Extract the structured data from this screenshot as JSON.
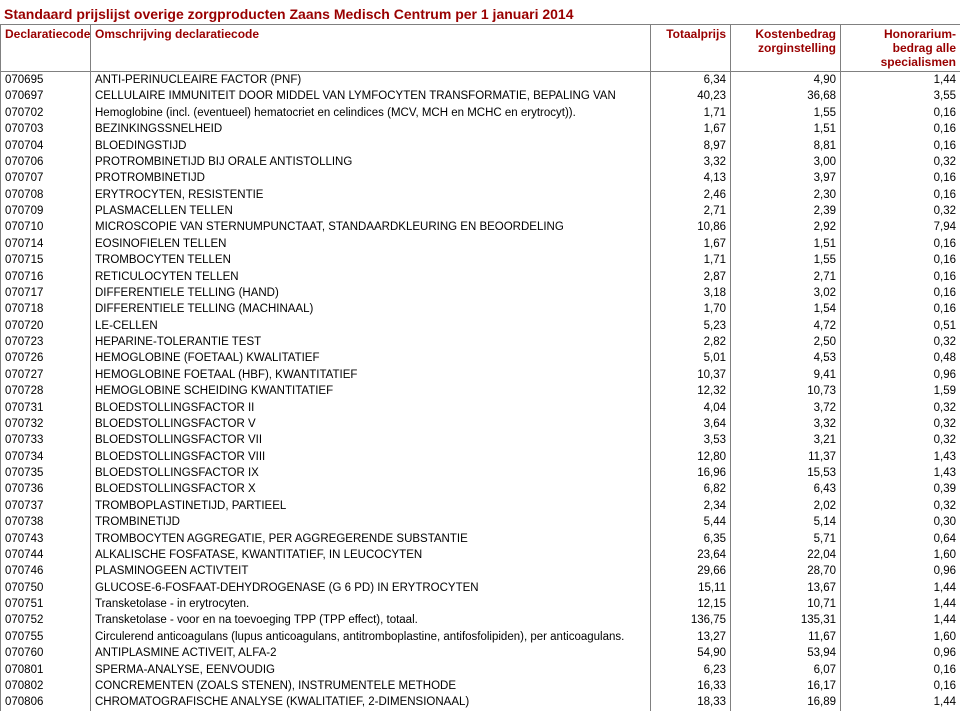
{
  "title": "Standaard prijslijst overige zorgproducten Zaans Medisch Centrum per 1 januari 2014",
  "colors": {
    "header_text": "#990000",
    "border": "#808080",
    "text": "#000000",
    "background": "#ffffff"
  },
  "table": {
    "headers": {
      "code": "Declaratiecode",
      "desc": "Omschrijving declaratiecode",
      "totaal": "Totaalprijs",
      "kosten": "Kostenbedrag zorginstelling",
      "honorarium": "Honorarium-bedrag alle specialismen"
    },
    "column_align": [
      "left",
      "left",
      "right",
      "right",
      "right"
    ],
    "rows": [
      {
        "c": "070695",
        "d": "ANTI-PERINUCLEAIRE FACTOR (PNF)",
        "p1": "6,34",
        "p2": "4,90",
        "p3": "1,44"
      },
      {
        "c": "070697",
        "d": "CELLULAIRE IMMUNITEIT DOOR MIDDEL VAN LYMFOCYTEN TRANSFORMATIE, BEPALING VAN",
        "p1": "40,23",
        "p2": "36,68",
        "p3": "3,55"
      },
      {
        "c": "070702",
        "d": "Hemoglobine (incl. (eventueel) hematocriet en celindices (MCV, MCH en MCHC en erytrocyt)).",
        "p1": "1,71",
        "p2": "1,55",
        "p3": "0,16"
      },
      {
        "c": "070703",
        "d": "BEZINKINGSSNELHEID",
        "p1": "1,67",
        "p2": "1,51",
        "p3": "0,16"
      },
      {
        "c": "070704",
        "d": "BLOEDINGSTIJD",
        "p1": "8,97",
        "p2": "8,81",
        "p3": "0,16"
      },
      {
        "c": "070706",
        "d": "PROTROMBINETIJD BIJ ORALE ANTISTOLLING",
        "p1": "3,32",
        "p2": "3,00",
        "p3": "0,32"
      },
      {
        "c": "070707",
        "d": "PROTROMBINETIJD",
        "p1": "4,13",
        "p2": "3,97",
        "p3": "0,16"
      },
      {
        "c": "070708",
        "d": "ERYTROCYTEN, RESISTENTIE",
        "p1": "2,46",
        "p2": "2,30",
        "p3": "0,16"
      },
      {
        "c": "070709",
        "d": "PLASMACELLEN TELLEN",
        "p1": "2,71",
        "p2": "2,39",
        "p3": "0,32"
      },
      {
        "c": "070710",
        "d": "MICROSCOPIE VAN STERNUMPUNCTAAT, STANDAARDKLEURING EN BEOORDELING",
        "p1": "10,86",
        "p2": "2,92",
        "p3": "7,94"
      },
      {
        "c": "070714",
        "d": "EOSINOFIELEN TELLEN",
        "p1": "1,67",
        "p2": "1,51",
        "p3": "0,16"
      },
      {
        "c": "070715",
        "d": "TROMBOCYTEN TELLEN",
        "p1": "1,71",
        "p2": "1,55",
        "p3": "0,16"
      },
      {
        "c": "070716",
        "d": "RETICULOCYTEN TELLEN",
        "p1": "2,87",
        "p2": "2,71",
        "p3": "0,16"
      },
      {
        "c": "070717",
        "d": "DIFFERENTIELE TELLING (HAND)",
        "p1": "3,18",
        "p2": "3,02",
        "p3": "0,16"
      },
      {
        "c": "070718",
        "d": "DIFFERENTIELE TELLING (MACHINAAL)",
        "p1": "1,70",
        "p2": "1,54",
        "p3": "0,16"
      },
      {
        "c": "070720",
        "d": "LE-CELLEN",
        "p1": "5,23",
        "p2": "4,72",
        "p3": "0,51"
      },
      {
        "c": "070723",
        "d": "HEPARINE-TOLERANTIE TEST",
        "p1": "2,82",
        "p2": "2,50",
        "p3": "0,32"
      },
      {
        "c": "070726",
        "d": "HEMOGLOBINE (FOETAAL) KWALITATIEF",
        "p1": "5,01",
        "p2": "4,53",
        "p3": "0,48"
      },
      {
        "c": "070727",
        "d": "HEMOGLOBINE FOETAAL (HBF), KWANTITATIEF",
        "p1": "10,37",
        "p2": "9,41",
        "p3": "0,96"
      },
      {
        "c": "070728",
        "d": "HEMOGLOBINE SCHEIDING KWANTITATIEF",
        "p1": "12,32",
        "p2": "10,73",
        "p3": "1,59"
      },
      {
        "c": "070731",
        "d": "BLOEDSTOLLINGSFACTOR II",
        "p1": "4,04",
        "p2": "3,72",
        "p3": "0,32"
      },
      {
        "c": "070732",
        "d": "BLOEDSTOLLINGSFACTOR V",
        "p1": "3,64",
        "p2": "3,32",
        "p3": "0,32"
      },
      {
        "c": "070733",
        "d": "BLOEDSTOLLINGSFACTOR VII",
        "p1": "3,53",
        "p2": "3,21",
        "p3": "0,32"
      },
      {
        "c": "070734",
        "d": "BLOEDSTOLLINGSFACTOR VIII",
        "p1": "12,80",
        "p2": "11,37",
        "p3": "1,43"
      },
      {
        "c": "070735",
        "d": "BLOEDSTOLLINGSFACTOR IX",
        "p1": "16,96",
        "p2": "15,53",
        "p3": "1,43"
      },
      {
        "c": "070736",
        "d": "BLOEDSTOLLINGSFACTOR X",
        "p1": "6,82",
        "p2": "6,43",
        "p3": "0,39"
      },
      {
        "c": "070737",
        "d": "TROMBOPLASTINETIJD, PARTIEEL",
        "p1": "2,34",
        "p2": "2,02",
        "p3": "0,32"
      },
      {
        "c": "070738",
        "d": "TROMBINETIJD",
        "p1": "5,44",
        "p2": "5,14",
        "p3": "0,30"
      },
      {
        "c": "070743",
        "d": "TROMBOCYTEN AGGREGATIE, PER AGGREGERENDE SUBSTANTIE",
        "p1": "6,35",
        "p2": "5,71",
        "p3": "0,64"
      },
      {
        "c": "070744",
        "d": "ALKALISCHE FOSFATASE, KWANTITATIEF, IN LEUCOCYTEN",
        "p1": "23,64",
        "p2": "22,04",
        "p3": "1,60"
      },
      {
        "c": "070746",
        "d": "PLASMINOGEEN ACTIVTEIT",
        "p1": "29,66",
        "p2": "28,70",
        "p3": "0,96"
      },
      {
        "c": "070750",
        "d": "GLUCOSE-6-FOSFAAT-DEHYDROGENASE (G 6 PD) IN ERYTROCYTEN",
        "p1": "15,11",
        "p2": "13,67",
        "p3": "1,44"
      },
      {
        "c": "070751",
        "d": "Transketolase - in erytrocyten.",
        "p1": "12,15",
        "p2": "10,71",
        "p3": "1,44"
      },
      {
        "c": "070752",
        "d": "Transketolase - voor en na toevoeging TPP (TPP effect), totaal.",
        "p1": "136,75",
        "p2": "135,31",
        "p3": "1,44"
      },
      {
        "c": "070755",
        "d": "Circulerend anticoagulans (lupus anticoagulans, antitromboplastine, antifosfolipiden), per anticoagulans.",
        "p1": "13,27",
        "p2": "11,67",
        "p3": "1,60"
      },
      {
        "c": "070760",
        "d": "ANTIPLASMINE ACTIVEIT, ALFA-2",
        "p1": "54,90",
        "p2": "53,94",
        "p3": "0,96"
      },
      {
        "c": "070801",
        "d": "SPERMA-ANALYSE, EENVOUDIG",
        "p1": "6,23",
        "p2": "6,07",
        "p3": "0,16"
      },
      {
        "c": "070802",
        "d": "CONCREMENTEN (ZOALS STENEN), INSTRUMENTELE METHODE",
        "p1": "16,33",
        "p2": "16,17",
        "p3": "0,16"
      },
      {
        "c": "070806",
        "d": "CHROMATOGRAFISCHE ANALYSE (KWALITATIEF, 2-DIMENSIONAAL)",
        "p1": "18,33",
        "p2": "16,89",
        "p3": "1,44"
      }
    ]
  }
}
